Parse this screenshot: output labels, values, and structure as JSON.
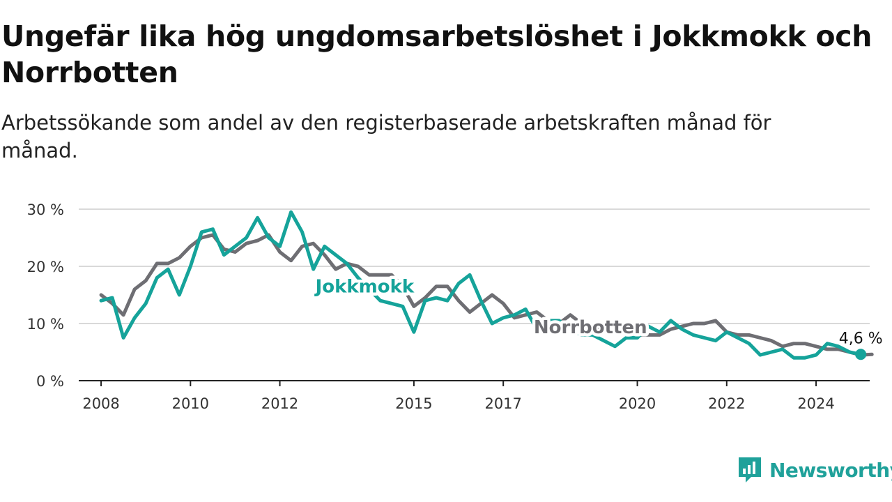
{
  "title": "Ungefär lika hög ungdomsarbetslöshet i Jokkmokk och Norrbotten",
  "subtitle": "Arbetssökande som andel av den registerbaserade arbetskraften månad för månad.",
  "brand": {
    "name": "Newsworthy",
    "icon": "newsworthy-logo-icon",
    "color": "#1fa19a"
  },
  "chart_data": {
    "type": "line",
    "y_ticks": [
      "0 %",
      "10 %",
      "20 %",
      "30 %"
    ],
    "y_tick_values": [
      0,
      10,
      20,
      30
    ],
    "x_ticks": [
      "2008",
      "2010",
      "2012",
      "2015",
      "2017",
      "2020",
      "2022",
      "2024"
    ],
    "x_tick_values": [
      2008,
      2010,
      2012,
      2015,
      2017,
      2020,
      2022,
      2024
    ],
    "xlim": [
      2007.5,
      2025.2
    ],
    "ylim": [
      0,
      30
    ],
    "grid": "horizontal",
    "last_value_label": "4,6 %",
    "series": [
      {
        "name": "Norrbotten",
        "color": "#6e6e73",
        "x_start": 2008.0,
        "step": 0.25,
        "values": [
          15.0,
          13.5,
          11.5,
          16.0,
          17.5,
          20.5,
          20.5,
          21.5,
          23.5,
          25.0,
          25.5,
          23.0,
          22.5,
          24.0,
          24.5,
          25.5,
          22.5,
          21.0,
          23.5,
          24.0,
          22.0,
          19.5,
          20.5,
          20.0,
          18.5,
          18.5,
          18.5,
          16.5,
          13.0,
          14.5,
          16.5,
          16.5,
          14.0,
          12.0,
          13.5,
          15.0,
          13.5,
          11.0,
          11.5,
          12.0,
          10.5,
          10.0,
          11.5,
          10.0,
          9.5,
          9.0,
          8.5,
          8.5,
          8.0,
          8.0,
          8.0,
          9.0,
          9.5,
          10.0,
          10.0,
          10.5,
          8.5,
          8.0,
          8.0,
          7.5,
          7.0,
          6.0,
          6.5,
          6.5,
          6.0,
          5.5,
          5.5,
          5.0,
          4.5,
          4.6
        ]
      },
      {
        "name": "Jokkmokk",
        "color": "#15a39a",
        "x_start": 2008.0,
        "step": 0.25,
        "values": [
          14.0,
          14.5,
          7.5,
          11.0,
          13.5,
          18.0,
          19.5,
          15.0,
          20.0,
          26.0,
          26.5,
          22.0,
          23.5,
          25.0,
          28.5,
          25.0,
          23.5,
          29.5,
          26.0,
          19.5,
          23.5,
          22.0,
          20.5,
          18.0,
          16.0,
          14.0,
          13.5,
          13.0,
          8.5,
          14.0,
          14.5,
          14.0,
          17.0,
          18.5,
          14.0,
          10.0,
          11.0,
          11.5,
          12.5,
          9.0,
          10.5,
          10.5,
          9.0,
          8.0,
          8.0,
          7.0,
          6.0,
          7.5,
          7.5,
          9.5,
          8.5,
          10.5,
          9.0,
          8.0,
          7.5,
          7.0,
          8.5,
          7.5,
          6.5,
          4.5,
          5.0,
          5.5,
          4.0,
          4.0,
          4.5,
          6.5,
          6.0,
          5.0,
          4.6
        ]
      }
    ],
    "annotations": [
      {
        "text": "Jokkmokk",
        "series": "Jokkmokk",
        "x": 2013.9,
        "y": 16.5
      },
      {
        "text": "Norrbotten",
        "series": "Norrbotten",
        "x": 2018.95,
        "y": 9.4
      }
    ]
  }
}
